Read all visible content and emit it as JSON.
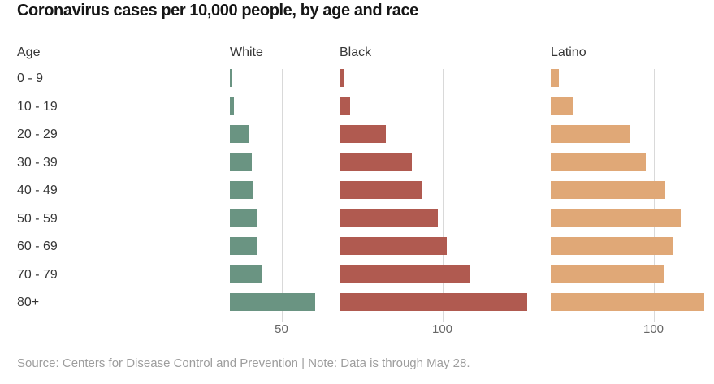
{
  "title": "Coronavirus cases per 10,000 people, by age and race",
  "header": {
    "age_label": "Age"
  },
  "source_note": "Source: Centers for Disease Control and Prevention | Note: Data is through May 28.",
  "colors": {
    "white_series": "#6a9482",
    "black_series": "#b05a50",
    "latino_series": "#e0a877",
    "gridline": "#d9d9d9",
    "title_text": "#161616",
    "label_text": "#363636",
    "tick_text": "#666666",
    "source_text": "#9d9d9d"
  },
  "chart_data": {
    "type": "bar",
    "orientation": "horizontal",
    "title": "Coronavirus cases per 10,000 people, by age and race",
    "xlabel": "Cases per 10,000 people",
    "ylabel": "Age",
    "grid": true,
    "shared_scale_across_panels": true,
    "categories": [
      "0 - 9",
      "10 - 19",
      "20 - 29",
      "30 - 39",
      "40 - 49",
      "50 - 59",
      "60 - 69",
      "70 - 79",
      "80+"
    ],
    "series": [
      {
        "name": "White",
        "color": "#6a9482",
        "tick_value": 50,
        "tick_label": "50",
        "values": [
          1.5,
          4,
          19,
          21,
          22,
          26,
          26,
          31,
          83
        ]
      },
      {
        "name": "Black",
        "color": "#b05a50",
        "tick_value": 100,
        "tick_label": "100",
        "values": [
          4,
          10,
          45,
          70,
          80,
          95,
          104,
          127,
          182
        ]
      },
      {
        "name": "Latino",
        "color": "#e0a877",
        "tick_value": 100,
        "tick_label": "100",
        "values": [
          8,
          22,
          76,
          92,
          111,
          126,
          118,
          110,
          149
        ]
      }
    ]
  }
}
